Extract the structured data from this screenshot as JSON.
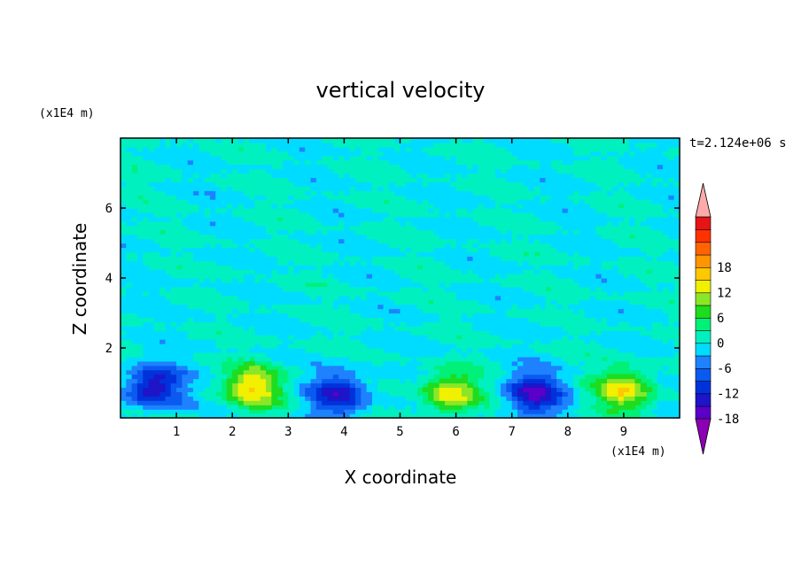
{
  "chart_data": {
    "type": "heatmap",
    "title": "vertical velocity",
    "xlabel": "X coordinate",
    "ylabel": "Z coordinate",
    "x_unit_label": "(x1E4 m)",
    "y_unit_label": "(x1E4 m)",
    "time_label": "t=2.124e+06 s",
    "xlim": [
      0,
      10
    ],
    "ylim": [
      0,
      8
    ],
    "x_ticks": [
      "1",
      "2",
      "3",
      "4",
      "5",
      "6",
      "7",
      "8",
      "9"
    ],
    "y_ticks": [
      "2",
      "4",
      "6"
    ],
    "colorbar": {
      "range": [
        -21,
        21
      ],
      "step": 3,
      "tick_labels": [
        "18",
        "12",
        "6",
        "0",
        "-6",
        "-12",
        "-18"
      ],
      "colors": [
        "#8c00b4",
        "#5a00c8",
        "#1e14c8",
        "#0032dc",
        "#0a5af0",
        "#1e82ff",
        "#00dcff",
        "#00f0c0",
        "#00f078",
        "#1edc1e",
        "#8ce628",
        "#f0f000",
        "#ffc800",
        "#ff9600",
        "#ff6400",
        "#ff3200",
        "#e61414",
        "#ffaaaa"
      ]
    },
    "features": [
      {
        "kind": "downdraft",
        "x": 0.6,
        "z": 0.9,
        "min": -15
      },
      {
        "kind": "updraft",
        "x": 2.4,
        "z": 0.9,
        "max": 15
      },
      {
        "kind": "downdraft",
        "x": 3.9,
        "z": 0.7,
        "min": -14
      },
      {
        "kind": "updraft",
        "x": 5.9,
        "z": 0.7,
        "max": 14
      },
      {
        "kind": "downdraft",
        "x": 7.4,
        "z": 0.7,
        "min": -15
      },
      {
        "kind": "updraft",
        "x": 9.0,
        "z": 0.8,
        "max": 14
      }
    ],
    "background": "weak vertical velocity, mostly between -3 and 3 above z=2"
  }
}
